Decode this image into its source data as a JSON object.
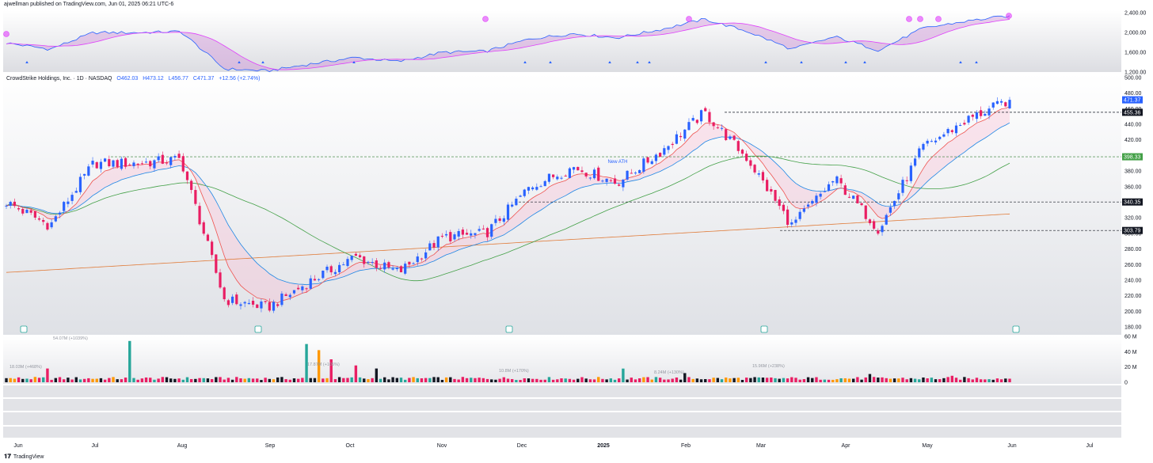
{
  "header": {
    "publisher": "ajwellman published on TradingView.com, Jun 01, 2025 06:21 UTC-6"
  },
  "footer": {
    "brand": "TradingView",
    "logo": "tv-logo-icon"
  },
  "colors": {
    "up": "#2962ff",
    "down": "#e91e63",
    "ema_fast": "#ef5350",
    "ema_slow": "#1e88e5",
    "sma50": "#43a047",
    "sma200": "#e07b39",
    "indicator_line": "#e040fb",
    "indicator_fill_up": "#90caf9",
    "indicator_fill_down": "#ce93d8",
    "vol_pink": "#e91e63",
    "vol_black": "#131722",
    "vol_green": "#26a69a",
    "vol_orange": "#ff9800"
  },
  "legend": {
    "title": "CrowdStrike Holdings, Inc. · 1D · NASDAQ",
    "open": "O462.03",
    "high": "H473.12",
    "low": "L456.77",
    "close": "C471.37",
    "change": "+12.56 (+2.74%)"
  },
  "chart_data": [
    {
      "type": "line",
      "panel": "indicator",
      "y_ticks": [
        "2,400.00",
        "2,000.00",
        "1,600.00",
        "1,200.00"
      ],
      "ylim": [
        1200,
        2450
      ]
    },
    {
      "type": "candlestick",
      "panel": "price",
      "title": "CrowdStrike Holdings, Inc. · 1D · NASDAQ",
      "ylim": [
        170,
        505
      ],
      "y_ticks": [
        500,
        480,
        460,
        440,
        420,
        400,
        380,
        360,
        340,
        320,
        300,
        280,
        260,
        240,
        220,
        200,
        180
      ],
      "x_ticks": [
        "Jun",
        "Jul",
        "Aug",
        "Sep",
        "Oct",
        "Nov",
        "Dec",
        "2025",
        "Feb",
        "Mar",
        "Apr",
        "May",
        "Jun",
        "Jul"
      ],
      "price_labels": [
        "471.37",
        "455.36",
        "398.33",
        "340.35",
        "303.79"
      ],
      "levels": [
        455.36,
        398.33,
        340.35,
        303.79
      ],
      "annotation": "New ATH",
      "last_close": 471.37,
      "anchors": [
        {
          "date": "Jun",
          "close": 340
        },
        {
          "date": "Jun mid",
          "close": 310
        },
        {
          "date": "Jun end",
          "close": 390
        },
        {
          "date": "Jul",
          "close": 390
        },
        {
          "date": "Jul peak",
          "close": 395
        },
        {
          "date": "Jul low",
          "close": 215
        },
        {
          "date": "Aug low",
          "close": 205
        },
        {
          "date": "Aug",
          "close": 240
        },
        {
          "date": "Sep",
          "close": 270
        },
        {
          "date": "Sep low",
          "close": 250
        },
        {
          "date": "Oct",
          "close": 295
        },
        {
          "date": "Nov",
          "close": 300
        },
        {
          "date": "Dec",
          "close": 360
        },
        {
          "date": "Dec high",
          "close": 385
        },
        {
          "date": "2025",
          "close": 365
        },
        {
          "date": "Feb",
          "close": 405
        },
        {
          "date": "Feb high",
          "close": 455
        },
        {
          "date": "Mar",
          "close": 395
        },
        {
          "date": "Mar low",
          "close": 310
        },
        {
          "date": "Apr",
          "close": 370
        },
        {
          "date": "Apr low",
          "close": 305
        },
        {
          "date": "May",
          "close": 410
        },
        {
          "date": "May high",
          "close": 445
        },
        {
          "date": "Jun",
          "close": 471.37
        }
      ]
    },
    {
      "type": "bar",
      "panel": "volume",
      "y_ticks": [
        "60 M",
        "40 M",
        "20 M",
        "0"
      ],
      "ylim": [
        0,
        60
      ],
      "annotations": [
        "18.03M (+468%)",
        "54.07M (+1039%)",
        "17.87M (+105%)",
        "10.8M (+170%)",
        "8.24M (+130%)",
        "15.96M (+238%)"
      ]
    }
  ]
}
